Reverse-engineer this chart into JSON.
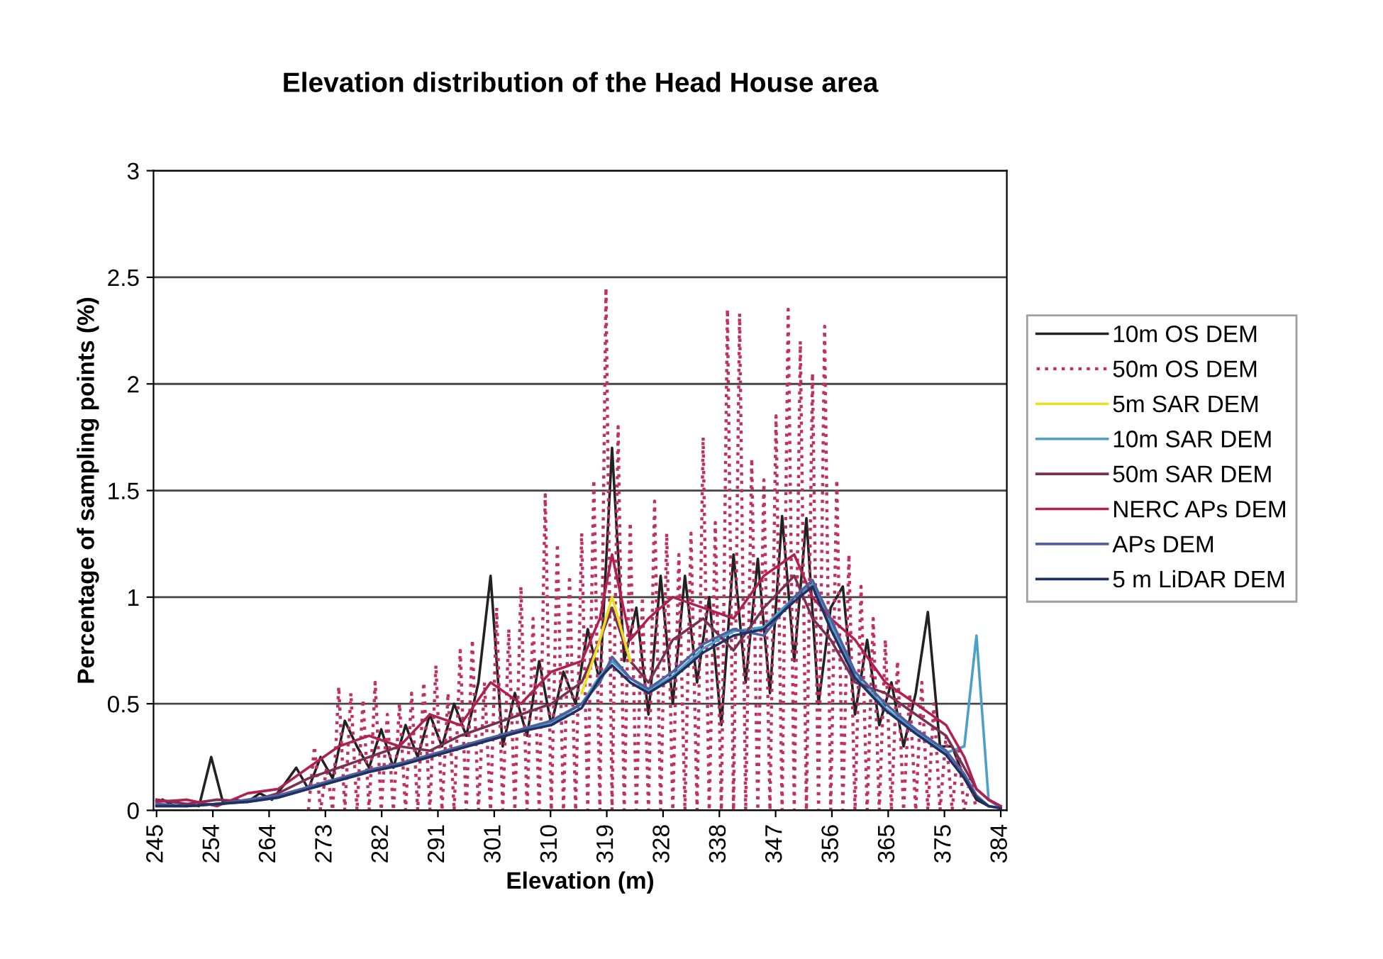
{
  "chart_data": {
    "type": "line",
    "title": "Elevation distribution of the Head House area",
    "xlabel": "Elevation (m)",
    "ylabel": "Percentage of sampling points (%)",
    "xlim": [
      244.5,
      385
    ],
    "xticks": [
      {
        "value": 245,
        "label": "245"
      },
      {
        "value": 254.27,
        "label": "254"
      },
      {
        "value": 263.53,
        "label": "264"
      },
      {
        "value": 272.8,
        "label": "273"
      },
      {
        "value": 282.07,
        "label": "282"
      },
      {
        "value": 291.33,
        "label": "291"
      },
      {
        "value": 300.6,
        "label": "301"
      },
      {
        "value": 309.87,
        "label": "310"
      },
      {
        "value": 319.13,
        "label": "319"
      },
      {
        "value": 328.4,
        "label": "328"
      },
      {
        "value": 337.67,
        "label": "338"
      },
      {
        "value": 346.93,
        "label": "347"
      },
      {
        "value": 356.2,
        "label": "356"
      },
      {
        "value": 365.47,
        "label": "365"
      },
      {
        "value": 374.73,
        "label": "375"
      },
      {
        "value": 384,
        "label": "384"
      }
    ],
    "ylim": [
      0,
      3
    ],
    "yticks": [
      0,
      0.5,
      1,
      1.5,
      2,
      2.5,
      3
    ],
    "grid": "y",
    "legend": "right",
    "x": [
      245,
      250,
      255,
      260,
      265,
      270,
      275,
      280,
      285,
      290,
      295,
      300,
      305,
      310,
      315,
      318,
      320,
      323,
      326,
      330,
      335,
      340,
      345,
      350,
      353,
      356,
      360,
      365,
      370,
      375,
      378,
      380,
      382,
      384
    ],
    "series": [
      {
        "name": "10m OS DEM",
        "color": "#222222",
        "line_style": "solid",
        "x": [
          246,
          248,
          250,
          252,
          254,
          256,
          258,
          260,
          262,
          264,
          266,
          268,
          270,
          272,
          274,
          276,
          278,
          280,
          282,
          284,
          286,
          288,
          290,
          292,
          294,
          296,
          298,
          300,
          302,
          304,
          306,
          308,
          310,
          312,
          314,
          316,
          318,
          320,
          322,
          324,
          326,
          328,
          330,
          332,
          334,
          336,
          338,
          340,
          342,
          344,
          346,
          348,
          350,
          352,
          354,
          356,
          358,
          360,
          362,
          364,
          366,
          368,
          370,
          372,
          374,
          376,
          378,
          380,
          382
        ],
        "values": [
          0.05,
          0.02,
          0.03,
          0.02,
          0.25,
          0.03,
          0.05,
          0.04,
          0.08,
          0.05,
          0.12,
          0.2,
          0.1,
          0.25,
          0.15,
          0.42,
          0.3,
          0.2,
          0.38,
          0.2,
          0.4,
          0.25,
          0.45,
          0.3,
          0.5,
          0.35,
          0.6,
          1.1,
          0.3,
          0.55,
          0.35,
          0.7,
          0.4,
          0.65,
          0.5,
          0.85,
          0.6,
          1.7,
          0.7,
          0.95,
          0.45,
          1.1,
          0.5,
          1.1,
          0.6,
          1.0,
          0.4,
          1.2,
          0.6,
          1.18,
          0.55,
          1.38,
          0.7,
          1.37,
          0.5,
          0.95,
          1.05,
          0.45,
          0.8,
          0.4,
          0.6,
          0.3,
          0.55,
          0.93,
          0.3,
          0.3,
          0.15,
          0.05,
          0.02
        ]
      },
      {
        "name": "50m OS DEM",
        "color": "#c03060",
        "line_style": "dotted",
        "x": [
          270,
          271,
          272,
          273,
          274,
          275,
          276,
          277,
          278,
          279,
          280,
          281,
          282,
          283,
          284,
          285,
          286,
          287,
          288,
          289,
          290,
          291,
          292,
          293,
          294,
          295,
          296,
          297,
          298,
          299,
          300,
          301,
          302,
          303,
          304,
          305,
          306,
          307,
          308,
          309,
          310,
          311,
          312,
          313,
          314,
          315,
          316,
          317,
          318,
          319,
          320,
          321,
          322,
          323,
          324,
          325,
          326,
          327,
          328,
          329,
          330,
          331,
          332,
          333,
          334,
          335,
          336,
          337,
          338,
          339,
          340,
          341,
          342,
          343,
          344,
          345,
          346,
          347,
          348,
          349,
          350,
          351,
          352,
          353,
          354,
          355,
          356,
          357,
          358,
          359,
          360,
          361,
          362,
          363,
          364,
          365,
          366,
          367,
          368,
          369,
          370,
          371,
          372,
          373,
          374,
          375,
          376,
          377,
          378,
          379,
          380
        ],
        "values": [
          0,
          0.3,
          0,
          0.2,
          0,
          0.58,
          0,
          0.55,
          0,
          0.52,
          0,
          0.6,
          0,
          0.45,
          0,
          0.5,
          0,
          0.55,
          0,
          0.6,
          0,
          0.68,
          0,
          0.55,
          0,
          0.75,
          0,
          0.8,
          0,
          0.6,
          0,
          0.95,
          0,
          0.85,
          0,
          1.05,
          0,
          0.9,
          0,
          1.48,
          0,
          1.25,
          0,
          1.1,
          0,
          1.3,
          0,
          1.55,
          0,
          2.45,
          0,
          1.8,
          0,
          1.35,
          0,
          1.0,
          0,
          1.45,
          0,
          1.3,
          0,
          1.2,
          0,
          1.3,
          0,
          1.75,
          0,
          1.35,
          0,
          2.35,
          0,
          2.33,
          0,
          1.65,
          0,
          1.55,
          0,
          1.85,
          0,
          2.35,
          0,
          2.2,
          0,
          2.05,
          0,
          2.27,
          0,
          1.55,
          0,
          1.2,
          0,
          1.05,
          0,
          0.9,
          0,
          0.8,
          0,
          0.7,
          0,
          0.55,
          0,
          0.6,
          0,
          0.5,
          0,
          0.35,
          0,
          0.3,
          0,
          0.15,
          0
        ]
      },
      {
        "name": "5m SAR DEM",
        "color": "#e8e020",
        "line_style": "solid",
        "values": [
          null,
          null,
          null,
          null,
          null,
          null,
          null,
          null,
          null,
          null,
          null,
          null,
          null,
          null,
          0.55,
          0.8,
          1.0,
          0.7,
          null,
          null,
          null,
          null,
          null,
          null,
          null,
          null,
          null,
          null,
          null,
          null,
          null,
          null,
          null,
          null
        ]
      },
      {
        "name": "10m SAR DEM",
        "color": "#4aa0c8",
        "line_style": "solid",
        "values": [
          0.02,
          0.02,
          0.03,
          0.04,
          0.06,
          0.1,
          0.14,
          0.18,
          0.22,
          0.25,
          0.3,
          0.34,
          0.37,
          0.41,
          0.5,
          0.63,
          0.7,
          0.62,
          0.56,
          0.63,
          0.76,
          0.84,
          0.86,
          1.0,
          1.06,
          0.88,
          0.63,
          0.48,
          0.37,
          0.27,
          0.3,
          0.82,
          0.05,
          0.01
        ]
      },
      {
        "name": "50m SAR DEM",
        "color": "#7a3050",
        "line_style": "solid",
        "values": [
          0.05,
          0.03,
          0.05,
          0.04,
          0.08,
          0.15,
          0.2,
          0.25,
          0.3,
          0.28,
          0.35,
          0.4,
          0.45,
          0.5,
          0.6,
          0.8,
          0.95,
          0.7,
          0.6,
          0.8,
          0.9,
          0.75,
          0.95,
          1.1,
          0.9,
          0.8,
          0.6,
          0.55,
          0.45,
          0.35,
          0.2,
          0.1,
          0.05,
          0.02
        ]
      },
      {
        "name": "NERC APs DEM",
        "color": "#b02050",
        "line_style": "solid",
        "values": [
          0.04,
          0.05,
          0.02,
          0.08,
          0.1,
          0.2,
          0.3,
          0.35,
          0.3,
          0.45,
          0.4,
          0.6,
          0.5,
          0.65,
          0.7,
          0.9,
          1.2,
          0.8,
          0.9,
          1.0,
          0.95,
          0.9,
          1.1,
          1.2,
          1.0,
          0.9,
          0.8,
          0.6,
          0.5,
          0.4,
          0.25,
          0.1,
          0.05,
          0.02
        ]
      },
      {
        "name": "APs DEM",
        "color": "#5060a0",
        "line_style": "solid",
        "values": [
          0.03,
          0.02,
          0.03,
          0.05,
          0.07,
          0.11,
          0.15,
          0.19,
          0.22,
          0.26,
          0.3,
          0.34,
          0.38,
          0.42,
          0.5,
          0.6,
          0.72,
          0.62,
          0.57,
          0.65,
          0.78,
          0.85,
          0.82,
          1.0,
          1.08,
          0.9,
          0.65,
          0.5,
          0.38,
          0.28,
          0.17,
          0.07,
          0.02,
          0.01
        ]
      },
      {
        "name": "5 m LiDAR DEM",
        "color": "#203060",
        "line_style": "solid",
        "values": [
          0.02,
          0.02,
          0.03,
          0.04,
          0.06,
          0.1,
          0.14,
          0.18,
          0.21,
          0.25,
          0.29,
          0.33,
          0.37,
          0.4,
          0.48,
          0.62,
          0.68,
          0.6,
          0.55,
          0.62,
          0.74,
          0.82,
          0.85,
          0.98,
          1.05,
          0.85,
          0.62,
          0.47,
          0.36,
          0.26,
          0.15,
          0.06,
          0.02,
          0.01
        ]
      }
    ]
  }
}
